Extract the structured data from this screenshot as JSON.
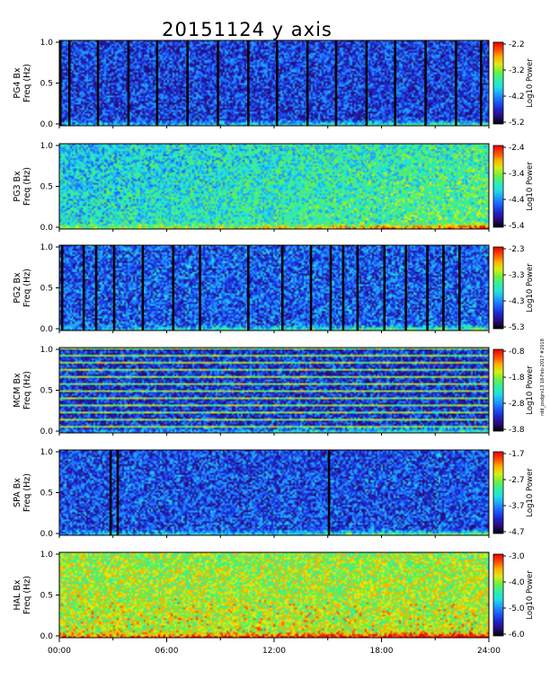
{
  "chart_data": {
    "type": "heatmap",
    "title": "20151124 y axis",
    "xlabel": "",
    "xlim": [
      "00:00",
      "24:00"
    ],
    "x_ticks": [
      "00:00",
      "06:00",
      "12:00",
      "18:00",
      "24:00"
    ],
    "y_ticks": [
      "0.0",
      "0.5",
      "1.0"
    ],
    "ylim": [
      0.0,
      1.0
    ],
    "side_note": "rdd_psdgrx13 18-Feb-2017 #2018",
    "panels": [
      {
        "station": "PG4 Bx",
        "ylabel": "Freq (Hz)",
        "cbar_label": "Log10 Power",
        "cbar_ticks": [
          "-2.2",
          "-3.2",
          "-4.2",
          "-5.2"
        ],
        "clim": [
          -5.2,
          -2.2
        ],
        "base_level": 0.18,
        "gaps_hours": [
          0.0,
          0.5,
          2.1,
          3.8,
          5.4,
          7.1,
          8.8,
          10.5,
          12.1,
          13.8,
          15.4,
          17.1,
          18.7,
          20.4,
          22.1,
          23.5
        ],
        "low_band_level": 0.55
      },
      {
        "station": "PG3 Bx",
        "ylabel": "Freq (Hz)",
        "cbar_label": "Log10 Power",
        "cbar_ticks": [
          "-2.4",
          "-3.4",
          "-4.4",
          "-5.4"
        ],
        "clim": [
          -5.4,
          -2.4
        ],
        "base_level": 0.42,
        "gaps_hours": [],
        "low_band_level": 0.7
      },
      {
        "station": "PG2 Bx",
        "ylabel": "Freq (Hz)",
        "cbar_label": "Log10 Power",
        "cbar_ticks": [
          "-2.3",
          "-3.3",
          "-4.3",
          "-5.3"
        ],
        "clim": [
          -5.3,
          -2.3
        ],
        "base_level": 0.22,
        "gaps_hours": [
          0.1,
          1.3,
          2.0,
          3.0,
          4.6,
          6.3,
          7.8,
          10.5,
          12.4,
          14.0,
          15.1,
          15.8,
          16.6,
          18.1,
          19.3,
          20.5,
          21.4,
          22.3
        ],
        "low_band_level": 0.6
      },
      {
        "station": "MCM Bx",
        "ylabel": "Freq (Hz)",
        "cbar_label": "Log10 Power",
        "cbar_ticks": [
          "-0.8",
          "-1.8",
          "-2.8",
          "-3.8"
        ],
        "clim": [
          -3.8,
          -0.8
        ],
        "base_level": 0.15,
        "gaps_hours": [],
        "low_band_level": 0.3
      },
      {
        "station": "SPA Bx",
        "ylabel": "Freq (Hz)",
        "cbar_label": "Log10 Power",
        "cbar_ticks": [
          "-1.7",
          "-2.7",
          "-3.7",
          "-4.7"
        ],
        "clim": [
          -4.7,
          -1.7
        ],
        "base_level": 0.2,
        "gaps_hours": [
          2.8,
          3.2,
          15.0
        ],
        "low_band_level": 0.55
      },
      {
        "station": "HAL Bx",
        "ylabel": "Freq (Hz)",
        "cbar_label": "Log10 Power",
        "cbar_ticks": [
          "-3.0",
          "-4.0",
          "-5.0",
          "-6.0"
        ],
        "clim": [
          -6.0,
          -3.0
        ],
        "base_level": 0.62,
        "gaps_hours": [],
        "low_band_level": 0.35
      }
    ]
  },
  "colors": {
    "background": "#ffffff",
    "axis": "#000000",
    "colormap": [
      "#000000",
      "#2a0a7a",
      "#1a28c8",
      "#1e5aff",
      "#1ea0ff",
      "#22e0e0",
      "#30f0a0",
      "#6ef040",
      "#d8ee10",
      "#ffb000",
      "#ff4800",
      "#e60000"
    ]
  }
}
